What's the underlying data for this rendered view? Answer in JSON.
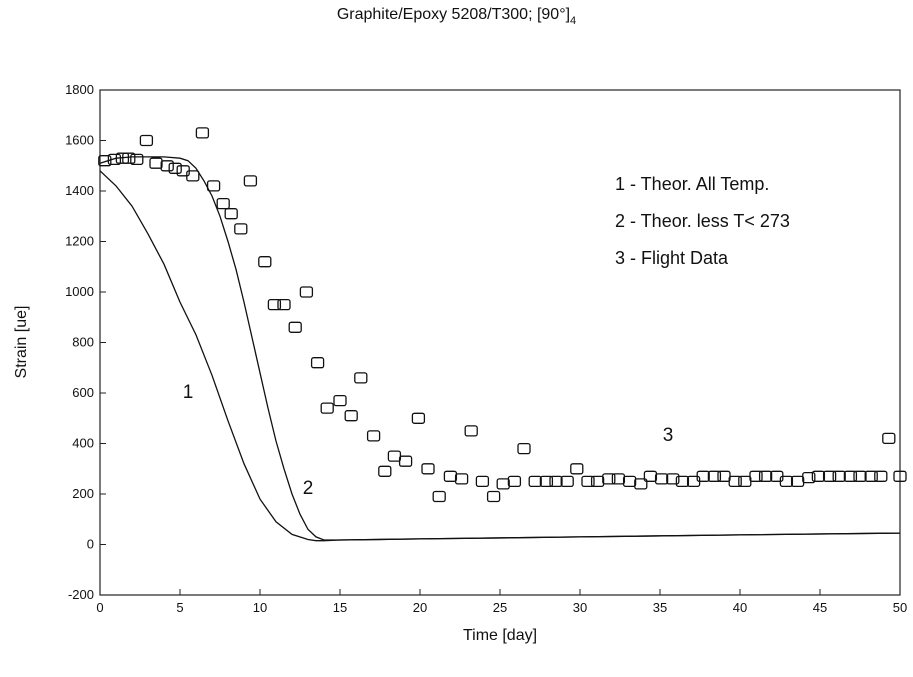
{
  "chart_data": {
    "type": "scatter",
    "title": "Graphite/Epoxy 5208/T300; [90°]",
    "title_subscript": "4",
    "xlabel": "Time [day]",
    "ylabel": "Strain [ue]",
    "xlim": [
      0,
      50
    ],
    "ylim": [
      -200,
      1800
    ],
    "xticks": [
      0,
      5,
      10,
      15,
      20,
      25,
      30,
      35,
      40,
      45,
      50
    ],
    "yticks": [
      -200,
      0,
      200,
      400,
      600,
      800,
      1000,
      1200,
      1400,
      1600,
      1800
    ],
    "grid": false,
    "legend_entries": [
      "1 - Theor. All Temp.",
      "2 - Theor. less T< 273",
      "3 - Flight Data"
    ],
    "curve_labels": [
      {
        "text": "1",
        "x": 5.5,
        "y": 580
      },
      {
        "text": "2",
        "x": 13.0,
        "y": 200
      },
      {
        "text": "3",
        "x": 35.5,
        "y": 410
      }
    ],
    "series": [
      {
        "name": "1",
        "kind": "line",
        "x": [
          0,
          1,
          2,
          3,
          4,
          5,
          6,
          7,
          8,
          9,
          10,
          11,
          12,
          13,
          13.5,
          14,
          15,
          20,
          30,
          40,
          50
        ],
        "y": [
          1480,
          1420,
          1340,
          1230,
          1110,
          960,
          830,
          670,
          490,
          320,
          180,
          90,
          40,
          20,
          15,
          15,
          18,
          22,
          30,
          38,
          45
        ]
      },
      {
        "name": "2",
        "kind": "line",
        "x": [
          0,
          1,
          2,
          3,
          4,
          5,
          5.5,
          6,
          6.5,
          7,
          7.5,
          8,
          8.5,
          9,
          9.5,
          10,
          10.5,
          11,
          11.5,
          12,
          12.5,
          13,
          13.5,
          14,
          15,
          20,
          30,
          40,
          50
        ],
        "y": [
          1510,
          1530,
          1535,
          1535,
          1535,
          1530,
          1520,
          1490,
          1440,
          1380,
          1300,
          1200,
          1090,
          960,
          820,
          680,
          540,
          410,
          300,
          200,
          120,
          60,
          30,
          18,
          18,
          22,
          30,
          38,
          45
        ]
      },
      {
        "name": "3",
        "kind": "scatter",
        "x": [
          0.3,
          0.9,
          1.4,
          1.8,
          2.3,
          2.9,
          3.5,
          4.2,
          4.7,
          5.2,
          5.8,
          6.4,
          7.1,
          7.7,
          8.2,
          8.8,
          9.4,
          10.3,
          10.9,
          11.5,
          12.2,
          12.9,
          13.6,
          14.2,
          15.0,
          15.7,
          16.3,
          17.1,
          17.8,
          18.4,
          19.1,
          19.9,
          20.5,
          21.2,
          21.9,
          22.6,
          23.2,
          23.9,
          24.6,
          25.2,
          25.9,
          26.5,
          27.2,
          27.9,
          28.5,
          29.2,
          29.8,
          30.5,
          31.1,
          31.8,
          32.4,
          33.1,
          33.8,
          34.4,
          35.1,
          35.8,
          36.4,
          37.1,
          37.7,
          38.4,
          39.0,
          39.7,
          40.3,
          41.0,
          41.6,
          42.3,
          42.9,
          43.6,
          44.3,
          44.9,
          45.6,
          46.2,
          46.9,
          47.5,
          48.2,
          48.8,
          49.3,
          50.0
        ],
        "y": [
          1520,
          1525,
          1530,
          1530,
          1525,
          1600,
          1510,
          1500,
          1490,
          1480,
          1460,
          1630,
          1420,
          1350,
          1310,
          1250,
          1440,
          1120,
          950,
          950,
          860,
          1000,
          720,
          540,
          570,
          510,
          660,
          430,
          290,
          350,
          330,
          500,
          300,
          190,
          270,
          260,
          450,
          250,
          190,
          240,
          250,
          380,
          250,
          250,
          250,
          250,
          300,
          250,
          250,
          260,
          260,
          250,
          240,
          270,
          260,
          260,
          250,
          250,
          270,
          270,
          270,
          250,
          250,
          270,
          270,
          270,
          250,
          250,
          265,
          270,
          270,
          270,
          270,
          270,
          270,
          270,
          420,
          270
        ]
      }
    ]
  }
}
